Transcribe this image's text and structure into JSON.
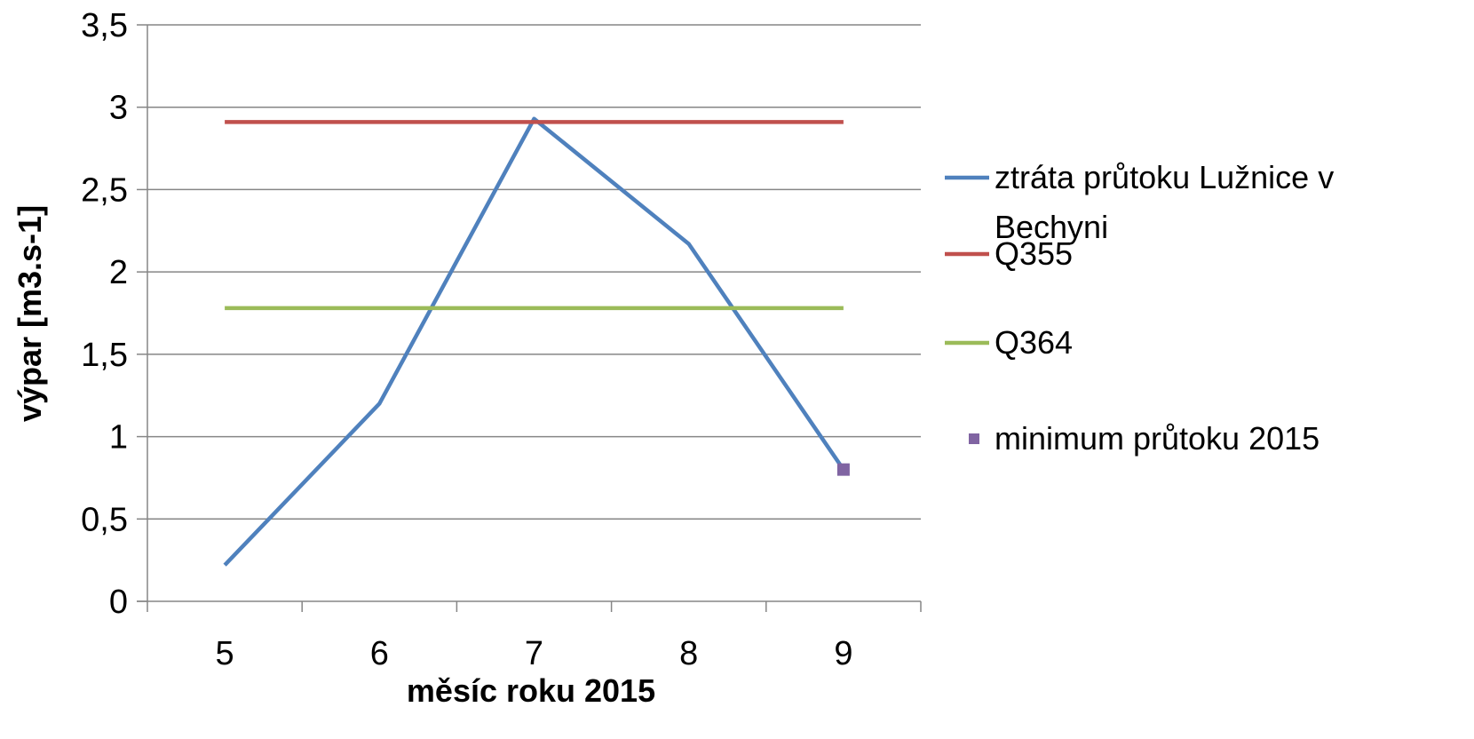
{
  "chart_data": {
    "type": "line",
    "xlabel": "měsíc roku 2015",
    "ylabel": "výpar [m3.s-1]",
    "categories": [
      "5",
      "6",
      "7",
      "8",
      "9"
    ],
    "ylim": [
      0,
      3.5
    ],
    "y_ticks": [
      "0",
      "0,5",
      "1",
      "1,5",
      "2",
      "2,5",
      "3",
      "3,5"
    ],
    "y_tick_values": [
      0,
      0.5,
      1,
      1.5,
      2,
      2.5,
      3,
      3.5
    ],
    "grid": true,
    "legend_position": "right",
    "series": [
      {
        "name_lines": [
          "ztráta průtoku Lužnice v",
          "Bechyni"
        ],
        "type": "line",
        "color": "#4F81BD",
        "values": [
          0.22,
          1.2,
          2.93,
          2.17,
          0.8
        ]
      },
      {
        "name_lines": [
          "Q355"
        ],
        "type": "line",
        "color": "#C0504D",
        "values": [
          2.91,
          2.91,
          2.91,
          2.91,
          2.91
        ]
      },
      {
        "name_lines": [
          "Q364"
        ],
        "type": "line",
        "color": "#9BBB59",
        "values": [
          1.78,
          1.78,
          1.78,
          1.78,
          1.78
        ]
      },
      {
        "name_lines": [
          "minimum průtoku 2015"
        ],
        "type": "marker",
        "color": "#8064A2",
        "values": [
          null,
          null,
          null,
          null,
          0.8
        ]
      }
    ]
  }
}
